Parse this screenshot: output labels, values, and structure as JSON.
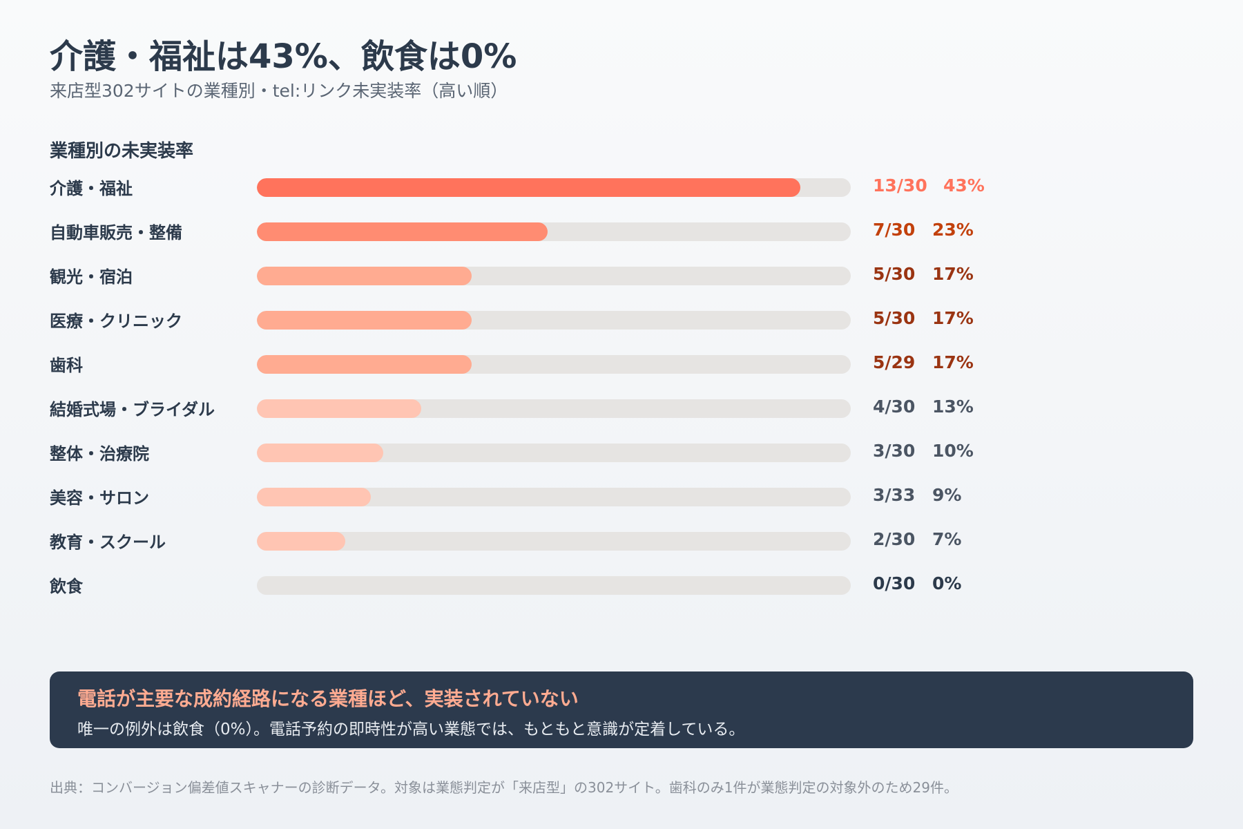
{
  "header": {
    "title": "介護・福祉は43%、飲食は0%",
    "subtitle": "来店型302サイトの業種別・tel:リンク未実装率（高い順）",
    "section_title": "業種別の未実装率"
  },
  "chart_data": {
    "type": "bar",
    "orientation": "horizontal",
    "title": "業種別の未実装率",
    "xlim": [
      0,
      47
    ],
    "categories": [
      "介護・福祉",
      "自動車販売・整備",
      "観光・宿泊",
      "医療・クリニック",
      "歯科",
      "結婚式場・ブライダル",
      "整体・治療院",
      "美容・サロン",
      "教育・スクール",
      "飲食"
    ],
    "values": [
      43,
      23,
      17,
      17,
      17,
      13,
      10,
      9,
      7,
      0
    ],
    "counts": [
      "13/30",
      "7/30",
      "5/30",
      "5/30",
      "5/29",
      "4/30",
      "3/30",
      "3/33",
      "2/30",
      "0/30"
    ],
    "value_labels": [
      "43%",
      "23%",
      "17%",
      "17%",
      "17%",
      "13%",
      "10%",
      "9%",
      "7%",
      "0%"
    ],
    "bar_colors": [
      "#ff735c",
      "#ff8c72",
      "#ffab91",
      "#ffab91",
      "#ffab91",
      "#ffc5b3",
      "#ffc5b3",
      "#ffc5b3",
      "#ffc5b3",
      "#ffc5b3"
    ],
    "label_colors": [
      "#ff735c",
      "#c2410c",
      "#9a3412",
      "#9a3412",
      "#9a3412",
      "#4b5563",
      "#4b5563",
      "#4b5563",
      "#4b5563",
      "#2c3a4b"
    ],
    "track_color": "#e6e4e2"
  },
  "callout": {
    "title": "電話が主要な成約経路になる業種ほど、実装されていない",
    "body": "唯一の例外は飲食（0%）。電話予約の即時性が高い業態では、もともと意識が定着している。"
  },
  "footnote": "出典：コンバージョン偏差値スキャナーの診断データ。対象は業態判定が「来店型」の302サイト。歯科のみ1件が業態判定の対象外のため29件。"
}
